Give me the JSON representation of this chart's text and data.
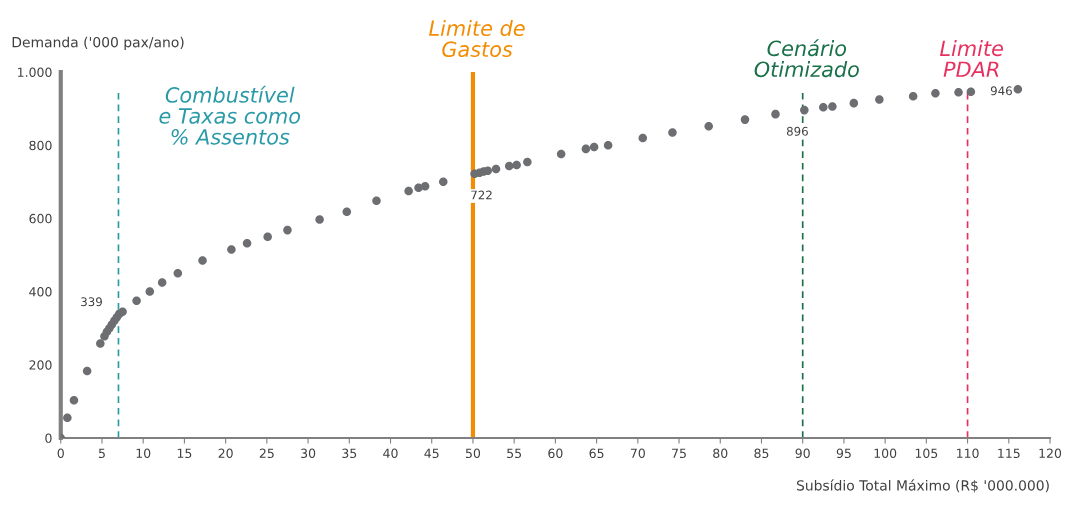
{
  "chart_data": {
    "type": "scatter",
    "xlabel": "Subsídio Total Máximo (R$ '000.000)",
    "ylabel": "Demanda ('000 pax/ano)",
    "x": [
      0,
      0.8,
      1.6,
      3.2,
      4.8,
      5.3,
      5.6,
      5.9,
      6.2,
      6.5,
      6.8,
      7.1,
      7.5,
      9.2,
      10.8,
      12.3,
      14.2,
      17.2,
      20.7,
      22.6,
      25.1,
      27.5,
      31.4,
      34.7,
      38.3,
      42.2,
      43.4,
      44.2,
      46.4,
      50.2,
      50.8,
      51.3,
      51.8,
      52.8,
      54.4,
      55.3,
      56.6,
      60.7,
      63.7,
      64.7,
      66.4,
      70.6,
      74.2,
      78.6,
      83.0,
      86.7,
      90.2,
      92.5,
      93.6,
      96.2,
      99.3,
      103.4,
      106.1,
      108.9,
      110.4,
      116.1
    ],
    "values": [
      0,
      55,
      103,
      183,
      258,
      278,
      290,
      300,
      310,
      320,
      330,
      339,
      345,
      375,
      400,
      425,
      450,
      485,
      515,
      532,
      550,
      568,
      597,
      618,
      648,
      675,
      684,
      688,
      700,
      722,
      725,
      728,
      730,
      735,
      743,
      746,
      754,
      776,
      790,
      795,
      800,
      820,
      835,
      852,
      870,
      885,
      896,
      904,
      906,
      915,
      925,
      934,
      942,
      945,
      946,
      953
    ],
    "value_labels": [
      null,
      null,
      null,
      null,
      null,
      null,
      null,
      null,
      null,
      null,
      null,
      "339",
      null,
      null,
      null,
      null,
      null,
      null,
      null,
      null,
      null,
      null,
      null,
      null,
      null,
      null,
      null,
      null,
      null,
      "722",
      null,
      null,
      null,
      null,
      null,
      null,
      null,
      null,
      null,
      null,
      null,
      null,
      null,
      null,
      null,
      null,
      "896",
      null,
      null,
      null,
      null,
      null,
      null,
      null,
      "946",
      null
    ],
    "color": "#6d6e71",
    "marker": "circle",
    "xlim": [
      0,
      120
    ],
    "xticks": [
      0,
      5,
      10,
      15,
      20,
      25,
      30,
      35,
      40,
      45,
      50,
      55,
      60,
      65,
      70,
      75,
      80,
      85,
      90,
      95,
      100,
      105,
      110,
      115,
      120
    ],
    "ylim": [
      0,
      1000
    ],
    "yticks": [
      0,
      200,
      400,
      600,
      800,
      {
        "value": 1000,
        "label": "1.000"
      }
    ],
    "grid": false,
    "ref_lines": [
      {
        "axis": "x",
        "value": 7,
        "label": "Combustível\ne Taxas como\n% Assentos",
        "color": "#2a9aa8",
        "line_style": "dashed"
      },
      {
        "axis": "x",
        "value": 50,
        "label": "Limite de\nGastos",
        "color": "#f28c00",
        "line_style": "solid"
      },
      {
        "axis": "x",
        "value": 90,
        "label": "Cenário\nOtimizado",
        "color": "#1a7048",
        "line_style": "dashed"
      },
      {
        "axis": "x",
        "value": 110,
        "label": "Limite\nPDAR",
        "color": "#e8305f",
        "line_style": "dashed"
      }
    ]
  }
}
